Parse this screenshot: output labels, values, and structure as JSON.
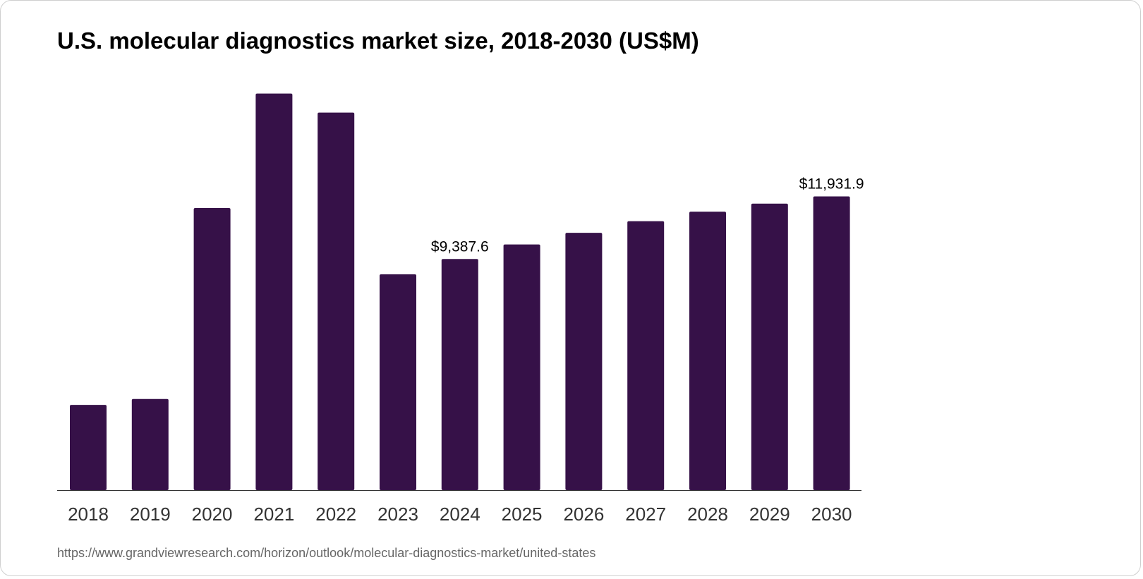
{
  "chart_data": {
    "type": "bar",
    "title": "U.S. molecular diagnostics market size, 2018-2030 (US$M)",
    "xlabel": "",
    "ylabel": "",
    "categories": [
      "2018",
      "2019",
      "2020",
      "2021",
      "2022",
      "2023",
      "2024",
      "2025",
      "2026",
      "2027",
      "2028",
      "2029",
      "2030"
    ],
    "values": [
      3464,
      3701,
      11459,
      16108,
      15338,
      8765,
      9387.6,
      9978,
      10452,
      10926,
      11311,
      11637,
      11931.9
    ],
    "data_labels": {
      "2024": "$9,387.6",
      "2030": "$11,931.9"
    },
    "ylim": [
      0,
      16500
    ],
    "grid": false,
    "bar_color": "#361148"
  },
  "source_url": "https://www.grandviewresearch.com/horizon/outlook/molecular-diagnostics-market/united-states"
}
